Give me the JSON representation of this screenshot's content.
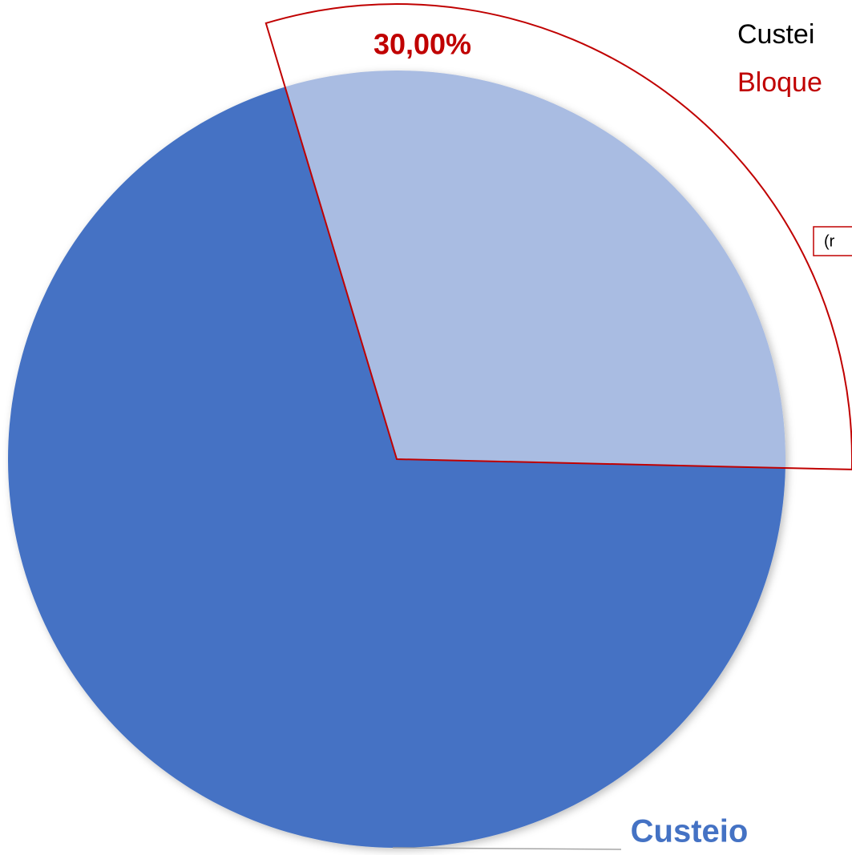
{
  "chart_data": {
    "type": "pie",
    "categories": [
      null,
      "Custeio"
    ],
    "values": [
      30,
      70
    ],
    "value_labels": [
      "30,00%",
      null
    ],
    "colors": [
      "#a9bce2",
      "#4472c4"
    ],
    "annotations": [
      "Custei",
      "Bloque",
      "(r"
    ]
  }
}
